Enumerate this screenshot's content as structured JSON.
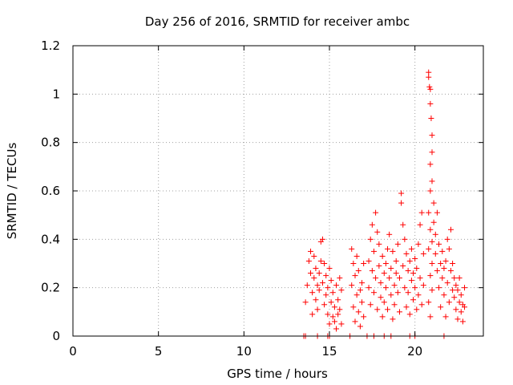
{
  "chart_data": {
    "type": "scatter",
    "title": "Day 256 of 2016, SRMTID for receiver ambc",
    "xlabel": "GPS time / hours",
    "ylabel": "SRMTID / TECUs",
    "xlim": [
      0,
      24
    ],
    "ylim": [
      0,
      1.2
    ],
    "xticks": [
      0,
      5,
      10,
      15,
      20
    ],
    "xtick_labels": [
      "0",
      "5",
      "10",
      "15",
      "20"
    ],
    "yticks": [
      0,
      0.2,
      0.4,
      0.6,
      0.8,
      1,
      1.2
    ],
    "ytick_labels": [
      "0",
      "0.2",
      "0.4",
      "0.6",
      "0.8",
      "1",
      "1.2"
    ],
    "grid": true,
    "marker": "+",
    "colors": {
      "series": "#ff0000",
      "grid": "#a0a0a0",
      "axis": "#000000"
    },
    "series": [
      {
        "name": "SRMTID",
        "points": [
          [
            13.5,
            0.0
          ],
          [
            13.6,
            0.0
          ],
          [
            14.3,
            0.0
          ],
          [
            14.9,
            0.0
          ],
          [
            15.0,
            0.0
          ],
          [
            16.2,
            0.0
          ],
          [
            17.2,
            0.0
          ],
          [
            17.6,
            0.0
          ],
          [
            18.2,
            0.0
          ],
          [
            18.6,
            0.0
          ],
          [
            19.7,
            0.0
          ],
          [
            20.0,
            0.0
          ],
          [
            21.7,
            0.0
          ],
          [
            13.6,
            0.14
          ],
          [
            13.7,
            0.21
          ],
          [
            13.8,
            0.31
          ],
          [
            13.9,
            0.35
          ],
          [
            13.9,
            0.26
          ],
          [
            14.0,
            0.18
          ],
          [
            14.0,
            0.09
          ],
          [
            14.1,
            0.24
          ],
          [
            14.1,
            0.33
          ],
          [
            14.2,
            0.15
          ],
          [
            14.2,
            0.28
          ],
          [
            14.3,
            0.21
          ],
          [
            14.3,
            0.11
          ],
          [
            14.4,
            0.19
          ],
          [
            14.4,
            0.26
          ],
          [
            14.5,
            0.31
          ],
          [
            14.5,
            0.39
          ],
          [
            14.6,
            0.4
          ],
          [
            14.6,
            0.22
          ],
          [
            14.7,
            0.13
          ],
          [
            14.7,
            0.3
          ],
          [
            14.8,
            0.25
          ],
          [
            14.8,
            0.17
          ],
          [
            14.9,
            0.09
          ],
          [
            14.9,
            0.2
          ],
          [
            15.0,
            0.05
          ],
          [
            15.0,
            0.28
          ],
          [
            15.1,
            0.14
          ],
          [
            15.1,
            0.23
          ],
          [
            15.2,
            0.08
          ],
          [
            15.2,
            0.18
          ],
          [
            15.3,
            0.12
          ],
          [
            15.3,
            0.06
          ],
          [
            15.4,
            0.21
          ],
          [
            15.4,
            0.03
          ],
          [
            15.5,
            0.15
          ],
          [
            15.5,
            0.09
          ],
          [
            15.6,
            0.24
          ],
          [
            15.6,
            0.11
          ],
          [
            15.7,
            0.19
          ],
          [
            15.7,
            0.05
          ],
          [
            16.3,
            0.36
          ],
          [
            16.3,
            0.21
          ],
          [
            16.4,
            0.3
          ],
          [
            16.4,
            0.12
          ],
          [
            16.5,
            0.25
          ],
          [
            16.5,
            0.06
          ],
          [
            16.6,
            0.17
          ],
          [
            16.6,
            0.33
          ],
          [
            16.7,
            0.1
          ],
          [
            16.7,
            0.27
          ],
          [
            16.8,
            0.19
          ],
          [
            16.8,
            0.04
          ],
          [
            16.9,
            0.14
          ],
          [
            16.9,
            0.22
          ],
          [
            17.0,
            0.08
          ],
          [
            17.0,
            0.3
          ],
          [
            17.3,
            0.31
          ],
          [
            17.3,
            0.2
          ],
          [
            17.4,
            0.4
          ],
          [
            17.4,
            0.13
          ],
          [
            17.5,
            0.46
          ],
          [
            17.5,
            0.27
          ],
          [
            17.6,
            0.35
          ],
          [
            17.6,
            0.18
          ],
          [
            17.7,
            0.51
          ],
          [
            17.7,
            0.24
          ],
          [
            17.8,
            0.43
          ],
          [
            17.8,
            0.11
          ],
          [
            17.9,
            0.29
          ],
          [
            17.9,
            0.38
          ],
          [
            18.0,
            0.16
          ],
          [
            18.0,
            0.22
          ],
          [
            18.1,
            0.33
          ],
          [
            18.1,
            0.08
          ],
          [
            18.2,
            0.26
          ],
          [
            18.2,
            0.14
          ],
          [
            18.3,
            0.3
          ],
          [
            18.3,
            0.2
          ],
          [
            18.4,
            0.36
          ],
          [
            18.4,
            0.11
          ],
          [
            18.5,
            0.24
          ],
          [
            18.5,
            0.42
          ],
          [
            18.6,
            0.17
          ],
          [
            18.6,
            0.28
          ],
          [
            18.7,
            0.07
          ],
          [
            18.7,
            0.35
          ],
          [
            18.8,
            0.21
          ],
          [
            18.8,
            0.13
          ],
          [
            18.9,
            0.31
          ],
          [
            18.9,
            0.26
          ],
          [
            19.0,
            0.18
          ],
          [
            19.0,
            0.38
          ],
          [
            19.1,
            0.1
          ],
          [
            19.1,
            0.24
          ],
          [
            19.2,
            0.59
          ],
          [
            19.2,
            0.55
          ],
          [
            19.3,
            0.46
          ],
          [
            19.3,
            0.29
          ],
          [
            19.4,
            0.4
          ],
          [
            19.4,
            0.2
          ],
          [
            19.5,
            0.34
          ],
          [
            19.5,
            0.12
          ],
          [
            19.6,
            0.27
          ],
          [
            19.6,
            0.18
          ],
          [
            19.7,
            0.31
          ],
          [
            19.7,
            0.09
          ],
          [
            19.8,
            0.23
          ],
          [
            19.8,
            0.36
          ],
          [
            19.9,
            0.15
          ],
          [
            19.9,
            0.26
          ],
          [
            20.0,
            0.2
          ],
          [
            20.0,
            0.32
          ],
          [
            20.1,
            0.11
          ],
          [
            20.1,
            0.28
          ],
          [
            20.2,
            0.38
          ],
          [
            20.2,
            0.17
          ],
          [
            20.3,
            0.46
          ],
          [
            20.3,
            0.24
          ],
          [
            20.4,
            0.51
          ],
          [
            20.4,
            0.13
          ],
          [
            20.5,
            0.34
          ],
          [
            20.5,
            0.21
          ],
          [
            20.8,
            1.09
          ],
          [
            20.8,
            1.07
          ],
          [
            20.85,
            1.03
          ],
          [
            20.9,
            1.02
          ],
          [
            20.9,
            0.96
          ],
          [
            20.95,
            0.9
          ],
          [
            21.0,
            0.83
          ],
          [
            21.0,
            0.76
          ],
          [
            20.9,
            0.71
          ],
          [
            21.0,
            0.64
          ],
          [
            20.9,
            0.6
          ],
          [
            20.8,
            0.51
          ],
          [
            20.9,
            0.44
          ],
          [
            21.0,
            0.39
          ],
          [
            20.8,
            0.36
          ],
          [
            21.0,
            0.3
          ],
          [
            20.9,
            0.25
          ],
          [
            21.0,
            0.19
          ],
          [
            20.8,
            0.14
          ],
          [
            20.9,
            0.08
          ],
          [
            21.1,
            0.55
          ],
          [
            21.1,
            0.47
          ],
          [
            21.2,
            0.42
          ],
          [
            21.2,
            0.34
          ],
          [
            21.3,
            0.51
          ],
          [
            21.3,
            0.27
          ],
          [
            21.4,
            0.38
          ],
          [
            21.4,
            0.2
          ],
          [
            21.5,
            0.3
          ],
          [
            21.5,
            0.12
          ],
          [
            21.6,
            0.24
          ],
          [
            21.6,
            0.35
          ],
          [
            21.7,
            0.17
          ],
          [
            21.7,
            0.28
          ],
          [
            21.8,
            0.08
          ],
          [
            21.8,
            0.31
          ],
          [
            21.9,
            0.22
          ],
          [
            21.9,
            0.4
          ],
          [
            22.0,
            0.14
          ],
          [
            22.0,
            0.36
          ],
          [
            22.1,
            0.27
          ],
          [
            22.1,
            0.44
          ],
          [
            22.2,
            0.19
          ],
          [
            22.2,
            0.3
          ],
          [
            22.3,
            0.24
          ],
          [
            22.3,
            0.16
          ],
          [
            22.4,
            0.11
          ],
          [
            22.4,
            0.21
          ],
          [
            22.5,
            0.07
          ],
          [
            22.5,
            0.19
          ],
          [
            22.6,
            0.14
          ],
          [
            22.6,
            0.24
          ],
          [
            22.7,
            0.1
          ],
          [
            22.7,
            0.17
          ],
          [
            22.8,
            0.06
          ],
          [
            22.8,
            0.13
          ],
          [
            22.9,
            0.2
          ],
          [
            22.9,
            0.12
          ]
        ]
      }
    ]
  }
}
